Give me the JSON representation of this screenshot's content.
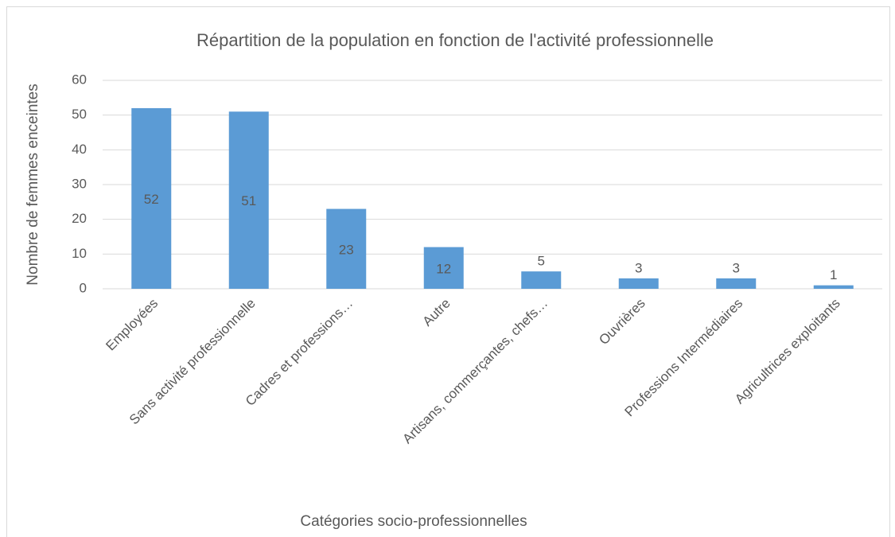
{
  "chart_data": {
    "type": "bar",
    "title": "Répartition de la population en fonction de l'activité professionnelle",
    "x_label": "Catégories socio-professionnelles",
    "y_label": "Nombre de femmes enceintes",
    "categories": [
      "Employées",
      "Sans activité professionnelle",
      "Cadres et professions…",
      "Autre",
      "Artisans, commerçantes, chefs…",
      "Ouvrières",
      "Professions Intermédiaires",
      "Agricultrices exploitants"
    ],
    "values": [
      52,
      51,
      23,
      12,
      5,
      3,
      3,
      1
    ],
    "color": "#5b9bd5",
    "ylim": [
      0,
      60
    ],
    "yticks": [
      0,
      10,
      20,
      30,
      40,
      50,
      60
    ],
    "grid": true
  }
}
